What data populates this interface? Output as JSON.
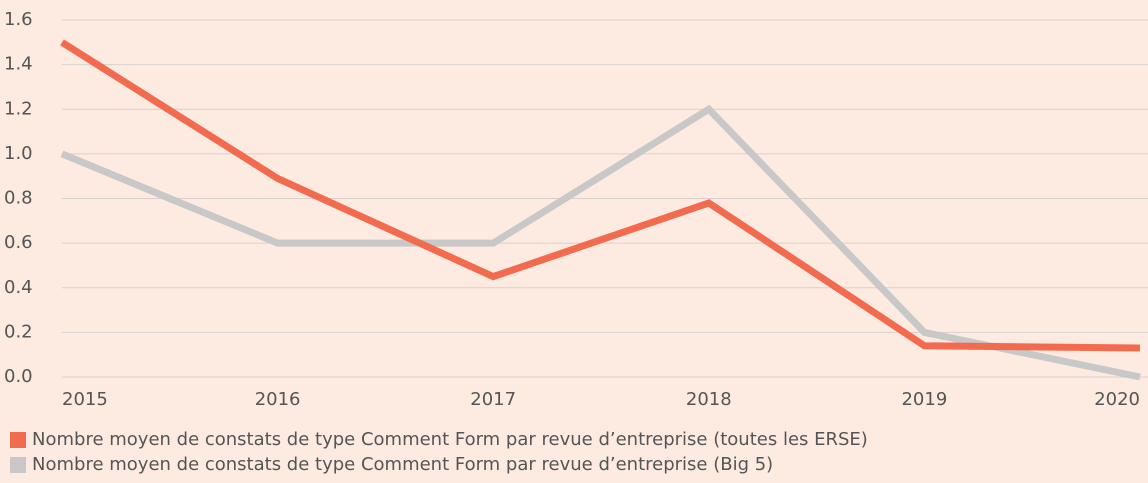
{
  "chart_data": {
    "type": "line",
    "categories": [
      "2015",
      "2016",
      "2017",
      "2018",
      "2019",
      "2020"
    ],
    "series": [
      {
        "name": "Nombre moyen de constats de type Comment Form par revue d’entreprise (toutes les ERSE)",
        "color": "#f26b4f",
        "values": [
          1.5,
          0.89,
          0.45,
          0.78,
          0.14,
          0.13
        ]
      },
      {
        "name": "Nombre moyen de constats de type Comment Form par revue d’entreprise (Big 5)",
        "color": "#c8c8c8",
        "values": [
          1.0,
          0.6,
          0.6,
          1.2,
          0.2,
          0.0
        ]
      }
    ],
    "ylim": [
      0,
      1.6
    ],
    "yticks": [
      {
        "value": 0,
        "label": "0.0"
      },
      0.2,
      0.4,
      0.6,
      0.8,
      {
        "value": 1,
        "label": "1.0"
      },
      1.2,
      1.4,
      1.6
    ],
    "grid": true
  }
}
